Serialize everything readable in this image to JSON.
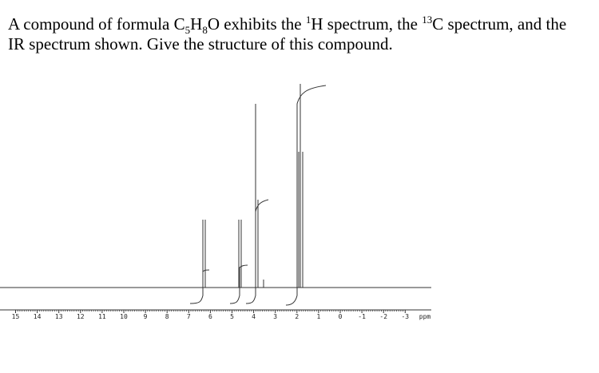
{
  "question": {
    "parts": [
      "A compound of formula C",
      "5",
      "H",
      "8",
      "O exhibits the ",
      "1",
      "H spectrum, the ",
      "13",
      "C spectrum, and the IR spectrum shown. Give the structure of this compound."
    ]
  },
  "spectrum": {
    "xticks": [
      15,
      14,
      13,
      12,
      11,
      10,
      9,
      8,
      7,
      6,
      5,
      4,
      3,
      2,
      1,
      0,
      -1,
      -2,
      -3
    ],
    "xlabel": "ppm"
  }
}
